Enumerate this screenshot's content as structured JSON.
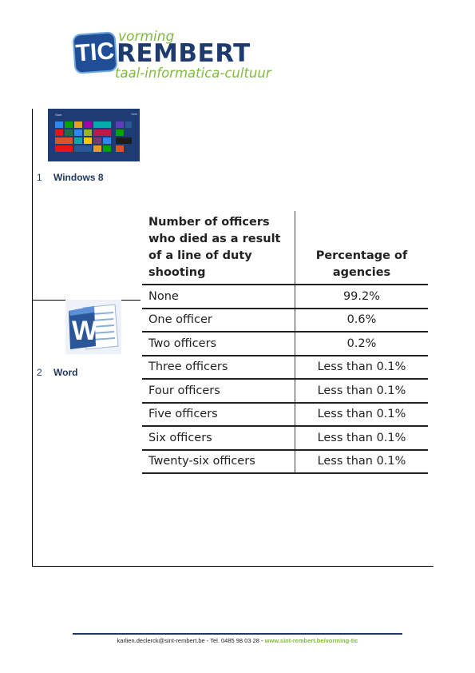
{
  "logo": {
    "tic": "TIC",
    "vorming": "vorming",
    "rembert": "REMBERT",
    "tagline": "taal-informatica-cultuur"
  },
  "items": [
    {
      "num": "1",
      "label": "Windows 8",
      "icon": "windows-8-start-screen"
    },
    {
      "num": "2",
      "label": "Word",
      "icon": "word-icon"
    }
  ],
  "windows8": {
    "start": "Start",
    "user": "Gebr"
  },
  "table": {
    "headers": [
      "Number of officers who died as a result of a line of duty shooting",
      "Percentage of agencies"
    ],
    "rows": [
      [
        "None",
        "99.2%"
      ],
      [
        "One officer",
        "0.6%"
      ],
      [
        "Two officers",
        "0.2%"
      ],
      [
        "Three officers",
        "Less than 0.1%"
      ],
      [
        "Four officers",
        "Less than 0.1%"
      ],
      [
        "Five officers",
        "Less than 0.1%"
      ],
      [
        "Six officers",
        "Less than 0.1%"
      ],
      [
        "Twenty-six officers",
        "Less than 0.1%"
      ]
    ]
  },
  "footer": {
    "text": "karlien.declerck@sint-rembert.be - Tel. 0485 98 03 28 - ",
    "link": "www.sint-rembert.be/vorming-tic"
  },
  "colors": {
    "navy": "#1f3864",
    "green": "#7fba3d",
    "word_blue": "#2b579a"
  }
}
